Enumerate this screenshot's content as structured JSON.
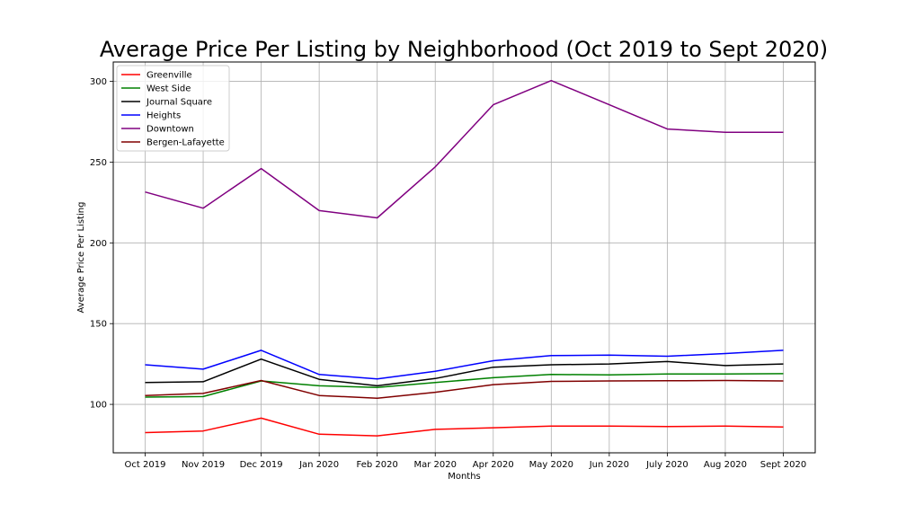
{
  "chart_data": {
    "type": "line",
    "title": "Average Price Per Listing by Neighborhood (Oct 2019 to Sept 2020)",
    "xlabel": "Months",
    "ylabel": "Average Price Per Listing",
    "categories": [
      "Oct 2019",
      "Nov 2019",
      "Dec 2019",
      "Jan 2020",
      "Feb 2020",
      "Mar 2020",
      "Apr 2020",
      "May 2020",
      "Jun 2020",
      "July 2020",
      "Aug 2020",
      "Sept 2020"
    ],
    "ylim": [
      70,
      312
    ],
    "yticks": [
      100,
      150,
      200,
      250,
      300
    ],
    "grid": true,
    "legend_position": "upper-left",
    "series": [
      {
        "name": "Greenville",
        "color": "#ff0000",
        "values": [
          82.5,
          83.5,
          91.5,
          81.5,
          80.5,
          84.5,
          85.5,
          86.5,
          86.5,
          86.3,
          86.5,
          86.0
        ]
      },
      {
        "name": "West Side",
        "color": "#008000",
        "values": [
          104.5,
          104.8,
          114.5,
          111.5,
          110.5,
          113.5,
          116.5,
          118.5,
          118.3,
          118.8,
          118.8,
          119.0
        ]
      },
      {
        "name": "Journal Square",
        "color": "#000000",
        "values": [
          113.5,
          114.0,
          128.0,
          115.5,
          111.5,
          116.0,
          123.0,
          124.5,
          125.0,
          126.5,
          124.0,
          125.0
        ]
      },
      {
        "name": "Heights",
        "color": "#0000ff",
        "values": [
          124.5,
          121.8,
          133.5,
          118.5,
          115.8,
          120.5,
          127.0,
          130.2,
          130.5,
          129.8,
          131.5,
          133.5
        ]
      },
      {
        "name": "Downtown",
        "color": "#800080",
        "values": [
          231.5,
          221.5,
          246.0,
          220.0,
          215.5,
          247.0,
          285.5,
          300.5,
          285.5,
          270.5,
          268.5,
          268.5
        ]
      },
      {
        "name": "Bergen-Lafayette",
        "color": "#800000",
        "values": [
          105.5,
          106.8,
          114.8,
          105.5,
          103.8,
          107.5,
          112.2,
          114.2,
          114.5,
          114.6,
          114.8,
          114.5
        ]
      }
    ]
  }
}
